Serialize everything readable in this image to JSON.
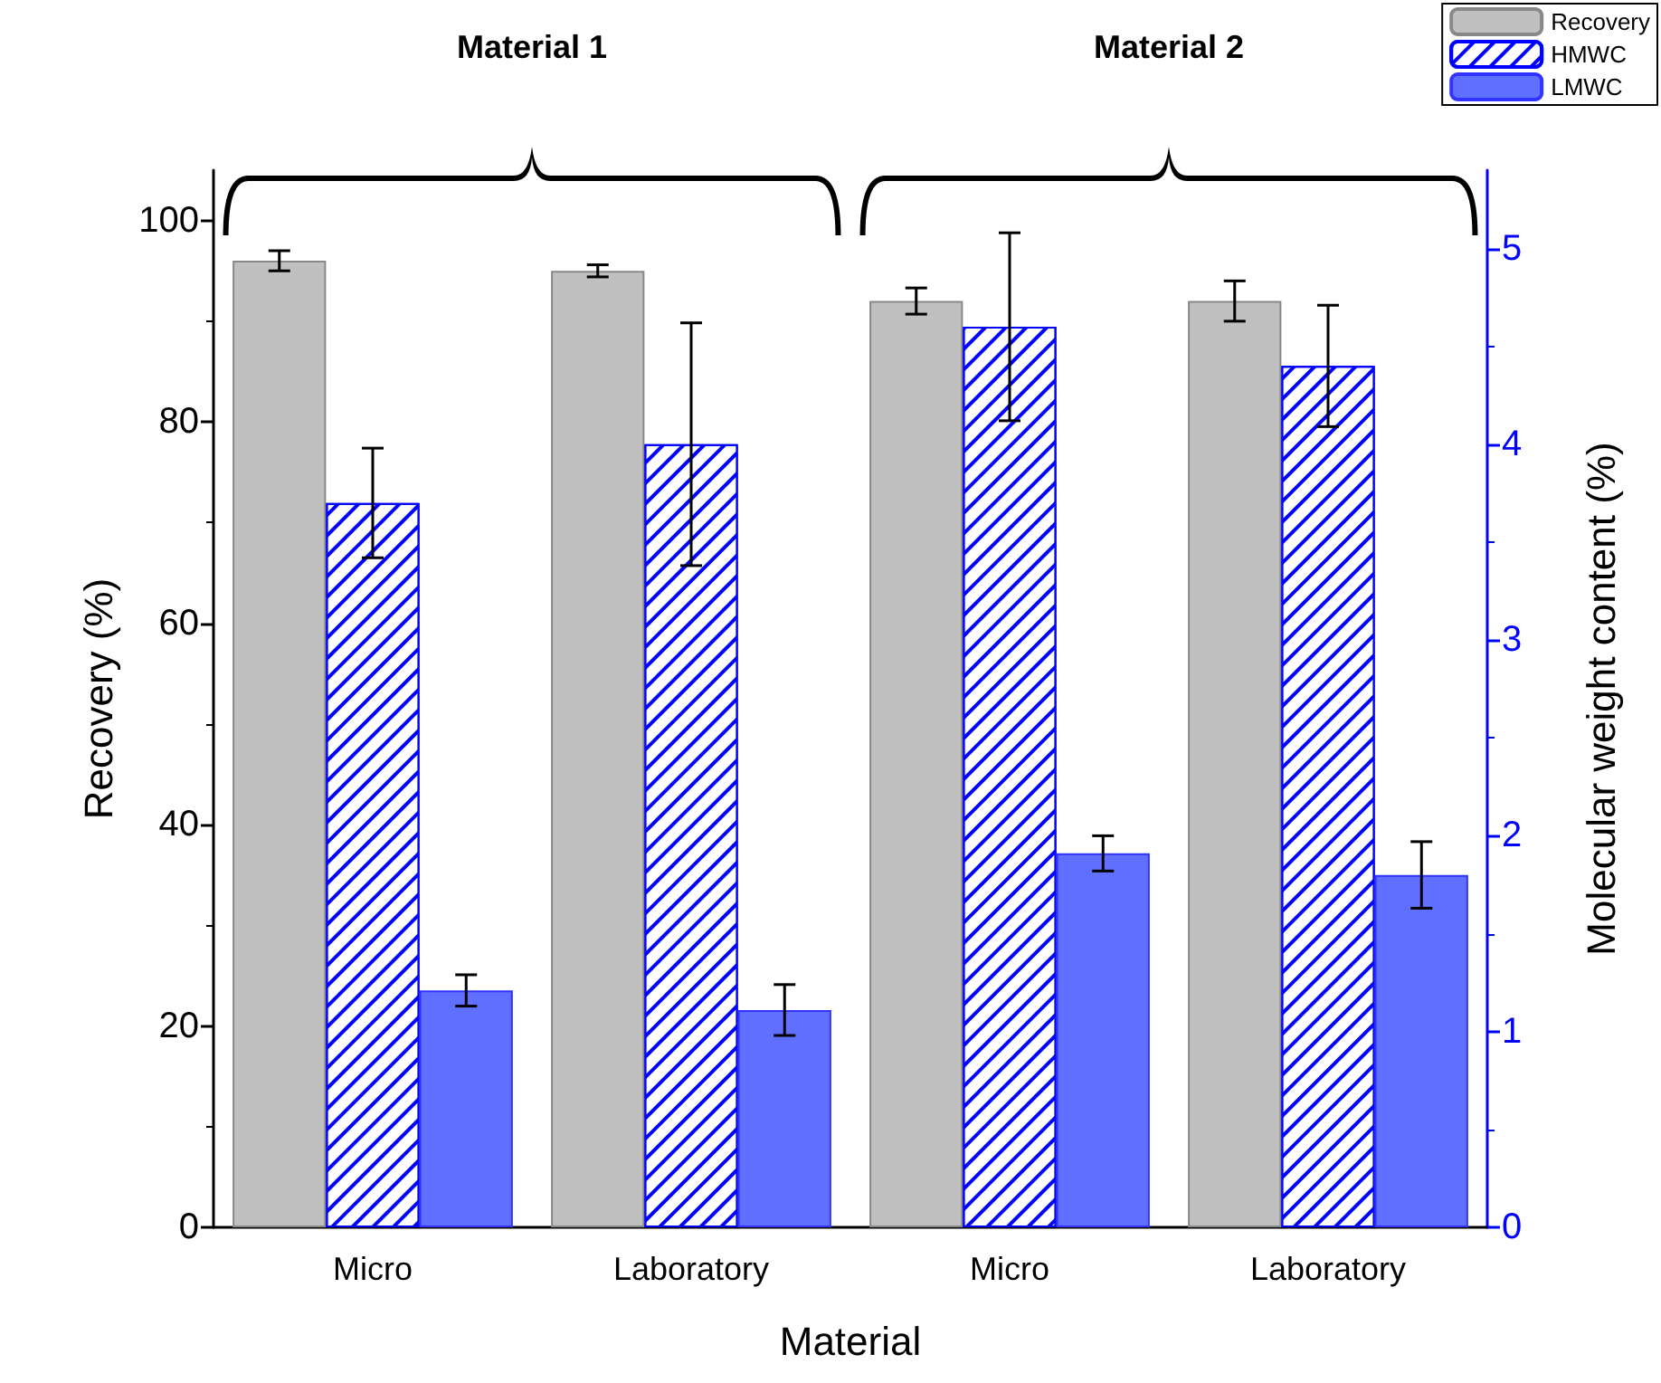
{
  "chart_data": {
    "type": "bar",
    "xlabel": "Material",
    "ylabel": "Recovery (%)",
    "y2label": "Molecular weight content (%)",
    "categories": [
      "Micro",
      "Laboratory",
      "Micro",
      "Laboratory"
    ],
    "series": [
      {
        "name": "Recovery",
        "color": "#c0c0c0",
        "values": [
          96,
          95,
          92,
          92
        ],
        "errors": [
          1,
          0.6,
          1.3,
          2
        ]
      },
      {
        "name": "HMWC",
        "color": "#0000ff",
        "type": "bar",
        "axis": "y2",
        "values": [
          3.7,
          4.0,
          4.6,
          4.4
        ],
        "errors": [
          0.28,
          0.62,
          0.48,
          0.31
        ]
      },
      {
        "name": "LMWC",
        "color": "#5f6fff",
        "axis": "y2",
        "values": [
          1.21,
          1.11,
          1.91,
          1.8
        ],
        "errors": [
          0.08,
          0.13,
          0.09,
          0.17
        ]
      }
    ],
    "ylim": [
      0,
      105
    ],
    "yticks": [
      0,
      20,
      40,
      60,
      80,
      100
    ],
    "y2lim": [
      0,
      5.4
    ],
    "y2ticks": [
      0,
      1,
      2,
      3,
      4,
      5
    ],
    "annotations": [
      "Material 1",
      "Material 2"
    ],
    "legend": "top right",
    "grid": false
  }
}
